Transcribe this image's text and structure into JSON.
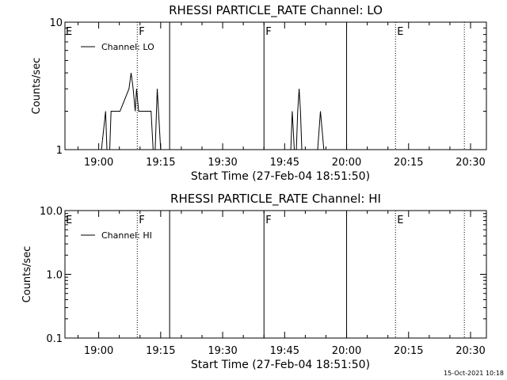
{
  "chart_data": [
    {
      "type": "line",
      "title": "RHESSI PARTICLE_RATE Channel: LO",
      "xlabel": "Start Time (27-Feb-04 18:51:50)",
      "ylabel": "Counts/sec",
      "y_scale": "log",
      "ylim": [
        1,
        10
      ],
      "y_ticks": [
        {
          "v": 1,
          "label": "1"
        },
        {
          "v": 10,
          "label": "10"
        }
      ],
      "xlim": [
        "18:51:50",
        "20:33:50"
      ],
      "x_ticks": [
        "19:00",
        "19:15",
        "19:30",
        "19:45",
        "20:00",
        "20:15",
        "20:30"
      ],
      "legend": {
        "position": "top-left",
        "entries": [
          "Channel: LO"
        ]
      },
      "series": [
        {
          "name": "Channel: LO",
          "x": [
            "18:51:50",
            "19:00:40",
            "19:01:40",
            "19:02:00",
            "19:02:40",
            "19:03:00",
            "19:04:20",
            "19:04:40",
            "19:05:10",
            "19:07:20",
            "19:07:50",
            "19:08:20",
            "19:08:50",
            "19:09:10",
            "19:09:40",
            "19:10:10",
            "19:12:40",
            "19:13:10",
            "19:13:40",
            "19:14:10",
            "19:15:00",
            "19:46:30",
            "19:46:50",
            "19:47:20",
            "19:47:50",
            "19:48:10",
            "19:48:30",
            "19:48:50",
            "19:49:10",
            "19:49:40",
            "19:53:00",
            "19:53:40",
            "19:54:30",
            "20:00:00"
          ],
          "y": [
            1,
            1,
            2,
            1,
            1,
            2,
            2,
            2,
            2,
            3,
            4,
            3,
            2,
            3,
            2,
            2,
            2,
            1,
            1,
            3,
            1,
            1,
            2,
            1,
            1,
            2,
            3,
            2,
            1,
            1,
            1,
            2,
            1,
            1
          ]
        }
      ],
      "markers": [
        {
          "time": "19:09:20",
          "style": "dotted",
          "label": "F"
        },
        {
          "time": "19:17:10",
          "style": "solid",
          "label": ""
        },
        {
          "time": "19:40:00",
          "style": "solid",
          "label": "F"
        },
        {
          "time": "20:00:00",
          "style": "solid",
          "label": ""
        },
        {
          "time": "20:11:50",
          "style": "dotted",
          "label": "E"
        },
        {
          "time": "20:28:30",
          "style": "dotted",
          "label": ""
        }
      ],
      "left_marker_label": "E"
    },
    {
      "type": "line",
      "title": "RHESSI PARTICLE_RATE Channel: HI",
      "xlabel": "Start Time (27-Feb-04 18:51:50)",
      "ylabel": "Counts/sec",
      "y_scale": "log",
      "ylim": [
        0.1,
        10
      ],
      "y_ticks": [
        {
          "v": 0.1,
          "label": "0.1"
        },
        {
          "v": 1,
          "label": "1.0"
        },
        {
          "v": 10,
          "label": "10.0"
        }
      ],
      "xlim": [
        "18:51:50",
        "20:33:50"
      ],
      "x_ticks": [
        "19:00",
        "19:15",
        "19:30",
        "19:45",
        "20:00",
        "20:15",
        "20:30"
      ],
      "legend": {
        "position": "top-left",
        "entries": [
          "Channel: HI"
        ]
      },
      "series": [
        {
          "name": "Channel: HI",
          "x": [],
          "y": []
        }
      ],
      "markers": [
        {
          "time": "19:09:20",
          "style": "dotted",
          "label": "F"
        },
        {
          "time": "19:17:10",
          "style": "solid",
          "label": ""
        },
        {
          "time": "19:40:00",
          "style": "solid",
          "label": "F"
        },
        {
          "time": "20:00:00",
          "style": "solid",
          "label": ""
        },
        {
          "time": "20:11:50",
          "style": "dotted",
          "label": "E"
        },
        {
          "time": "20:28:30",
          "style": "dotted",
          "label": ""
        }
      ],
      "left_marker_label": "E"
    }
  ],
  "footer": {
    "timestamp": "15-Oct-2021 10:18"
  }
}
